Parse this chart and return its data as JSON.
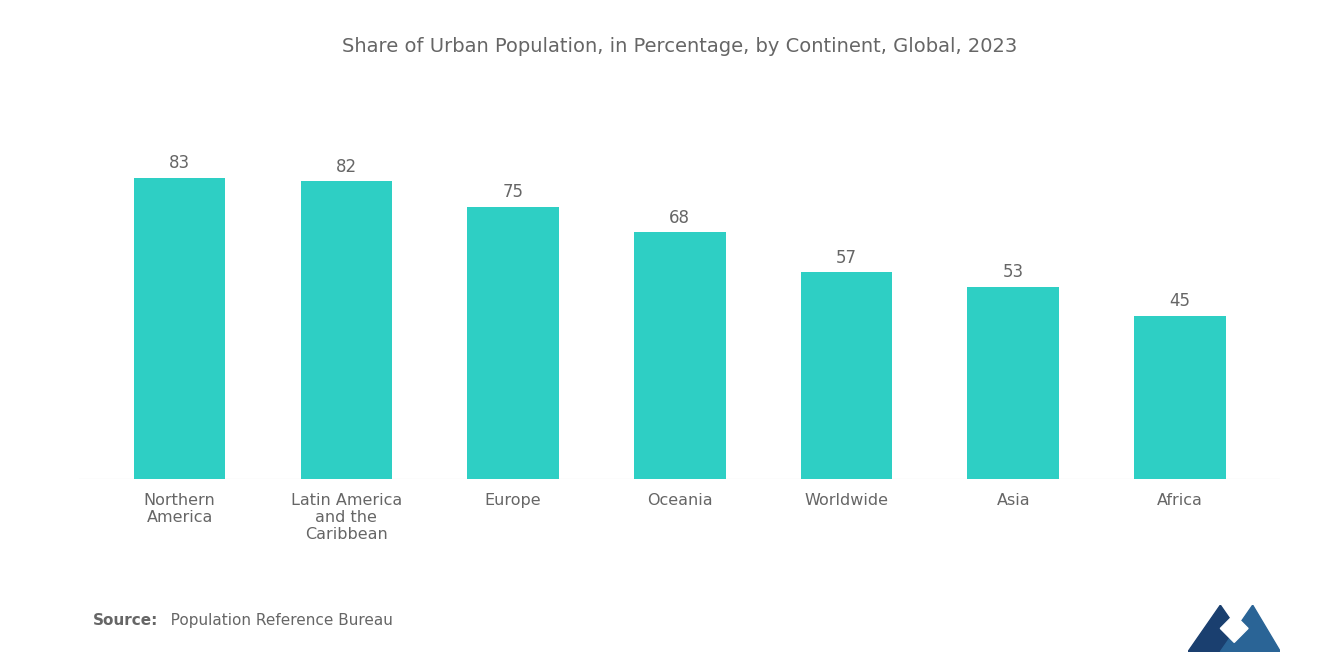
{
  "title": "Share of Urban Population, in Percentage, by Continent, Global, 2023",
  "categories": [
    "Northern\nAmerica",
    "Latin America\nand the\nCaribbean",
    "Europe",
    "Oceania",
    "Worldwide",
    "Asia",
    "Africa"
  ],
  "values": [
    83,
    82,
    75,
    68,
    57,
    53,
    45
  ],
  "bar_color": "#2ECFC4",
  "ylim": [
    0,
    110
  ],
  "source_bold": "Source:",
  "source_rest": "   Population Reference Bureau",
  "title_fontsize": 14,
  "label_fontsize": 11.5,
  "value_fontsize": 12,
  "source_fontsize": 11,
  "background_color": "#ffffff",
  "bar_width": 0.55,
  "text_color": "#666666"
}
